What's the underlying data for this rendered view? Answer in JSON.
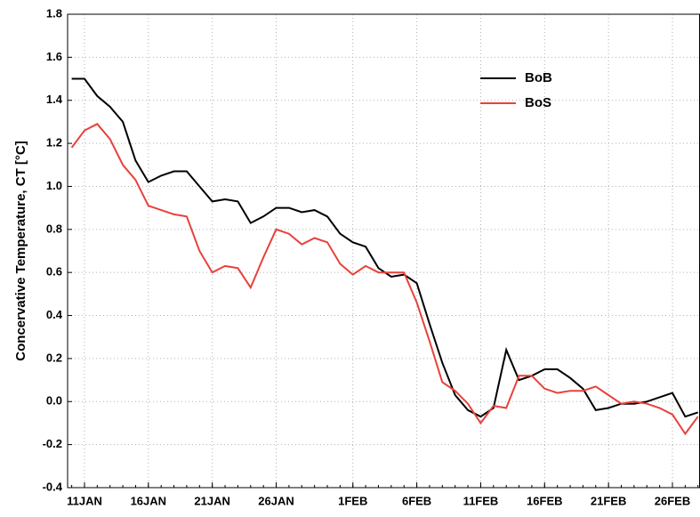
{
  "chart_data": {
    "type": "line",
    "y_label": "Concervative Temperature, CT [°C]",
    "categories": [
      null,
      "11JAN",
      null,
      null,
      null,
      null,
      "16JAN",
      null,
      null,
      null,
      null,
      "21JAN",
      null,
      null,
      null,
      null,
      "26JAN",
      null,
      null,
      null,
      null,
      null,
      "1FEB",
      null,
      null,
      null,
      null,
      "6FEB",
      null,
      null,
      null,
      null,
      "11FEB",
      null,
      null,
      null,
      null,
      "16FEB",
      null,
      null,
      null,
      null,
      "21FEB",
      null,
      null,
      null,
      null,
      "26FEB",
      null,
      null
    ],
    "series": [
      {
        "name": "BoB",
        "color": "#000000",
        "values": [
          1.5,
          1.5,
          1.42,
          1.37,
          1.3,
          1.12,
          1.02,
          1.05,
          1.07,
          1.07,
          1.0,
          0.93,
          0.94,
          0.93,
          0.83,
          0.86,
          0.9,
          0.9,
          0.88,
          0.89,
          0.86,
          0.78,
          0.74,
          0.72,
          0.62,
          0.58,
          0.59,
          0.55,
          0.36,
          0.18,
          0.03,
          -0.04,
          -0.07,
          -0.03,
          0.24,
          0.1,
          0.12,
          0.15,
          0.15,
          0.11,
          0.06,
          -0.04,
          -0.03,
          -0.01,
          -0.01,
          0.0,
          0.02,
          0.04,
          -0.07,
          -0.05
        ]
      },
      {
        "name": "BoS",
        "color": "#e8413c",
        "values": [
          1.18,
          1.26,
          1.29,
          1.22,
          1.1,
          1.03,
          0.91,
          0.89,
          0.87,
          0.86,
          0.7,
          0.6,
          0.63,
          0.62,
          0.53,
          0.67,
          0.8,
          0.78,
          0.73,
          0.76,
          0.74,
          0.64,
          0.59,
          0.63,
          0.6,
          0.6,
          0.6,
          0.46,
          0.28,
          0.09,
          0.05,
          -0.01,
          -0.1,
          -0.02,
          -0.03,
          0.12,
          0.12,
          0.06,
          0.04,
          0.05,
          0.05,
          0.07,
          0.03,
          -0.01,
          0.0,
          -0.01,
          -0.03,
          -0.06,
          -0.15,
          -0.07
        ]
      }
    ],
    "ylim": [
      -0.4,
      1.8
    ],
    "yticks": [
      -0.4,
      -0.2,
      {
        "value": 0,
        "label": "0.0"
      },
      0.2,
      0.4,
      0.6,
      0.8,
      {
        "value": 1,
        "label": "1.0"
      },
      1.2,
      1.4,
      1.6,
      1.8
    ],
    "grid": true,
    "legend": "upper right"
  }
}
